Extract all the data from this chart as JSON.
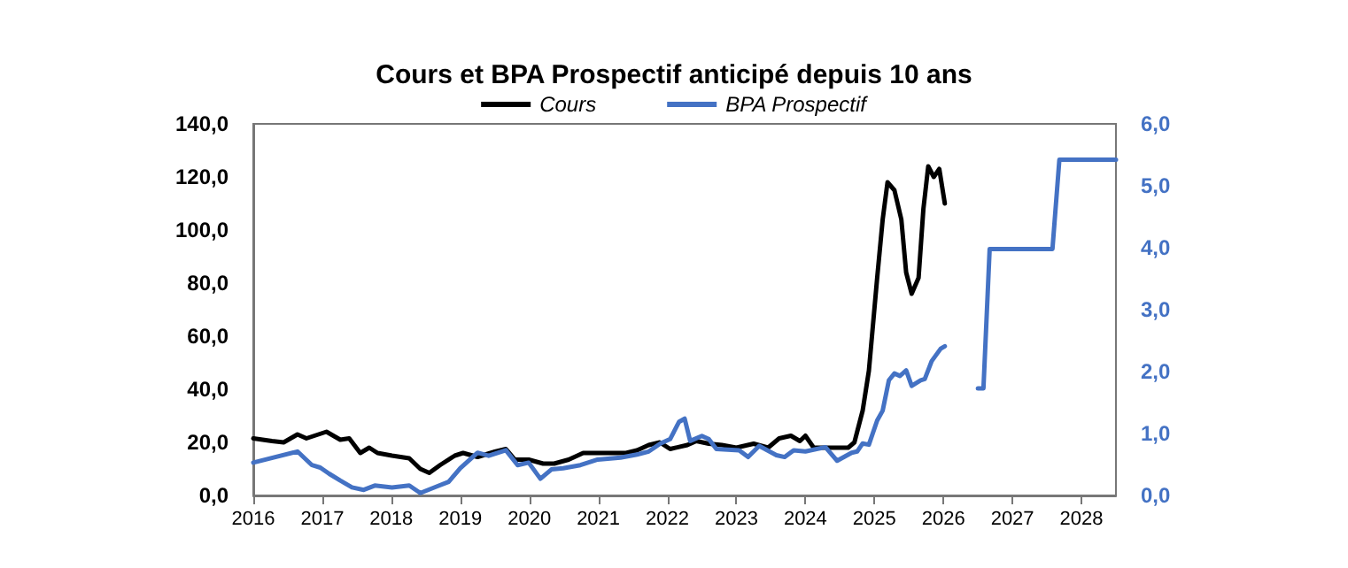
{
  "chart_data": {
    "type": "line",
    "title": "Cours et BPA Prospectif anticipé depuis 10 ans",
    "xlim": [
      2016,
      2028.5
    ],
    "xticks": [
      2016,
      2017,
      2018,
      2019,
      2020,
      2021,
      2022,
      2023,
      2024,
      2025,
      2026,
      2027,
      2028
    ],
    "ylim": [
      0,
      140
    ],
    "yticks": [
      {
        "value": 0,
        "label": "0,0"
      },
      {
        "value": 20,
        "label": "20,0"
      },
      {
        "value": 40,
        "label": "40,0"
      },
      {
        "value": 60,
        "label": "60,0"
      },
      {
        "value": 80,
        "label": "80,0"
      },
      {
        "value": 100,
        "label": "100,0"
      },
      {
        "value": 120,
        "label": "120,0"
      },
      {
        "value": 140,
        "label": "140,0"
      }
    ],
    "y2lim": [
      0,
      6
    ],
    "y2ticks": [
      {
        "value": 0,
        "label": "0,0"
      },
      {
        "value": 1,
        "label": "1,0"
      },
      {
        "value": 2,
        "label": "2,0"
      },
      {
        "value": 3,
        "label": "3,0"
      },
      {
        "value": 4,
        "label": "4,0"
      },
      {
        "value": 5,
        "label": "5,0"
      },
      {
        "value": 6,
        "label": "6,0"
      }
    ],
    "grid": false,
    "legend": "top",
    "marker": "none",
    "line_style": "solid",
    "series": [
      {
        "name": "Cours",
        "color": "#000000",
        "x": [
          2016.0,
          2016.27,
          2016.44,
          2016.64,
          2016.77,
          2017.06,
          2017.26,
          2017.39,
          2017.55,
          2017.68,
          2017.8,
          2018.01,
          2018.26,
          2018.42,
          2018.55,
          2018.71,
          2018.92,
          2019.04,
          2019.25,
          2019.5,
          2019.66,
          2019.79,
          2019.99,
          2020.2,
          2020.36,
          2020.57,
          2020.78,
          2021.07,
          2021.4,
          2021.56,
          2021.73,
          2021.89,
          2022.04,
          2022.29,
          2022.42,
          2022.6,
          2022.79,
          2023.0,
          2023.25,
          2023.46,
          2023.62,
          2023.79,
          2023.92,
          2024.0,
          2024.12,
          2024.29,
          2024.62,
          2024.71,
          2024.83,
          2024.92,
          2025.04,
          2025.12,
          2025.19,
          2025.29,
          2025.39,
          2025.46,
          2025.54,
          2025.64,
          2025.71,
          2025.78,
          2025.86,
          2025.94,
          2026.02
        ],
        "values": [
          21.5,
          20.5,
          20,
          23,
          21.5,
          24,
          21,
          21.5,
          16,
          18,
          16,
          15,
          14,
          10,
          8.5,
          11.5,
          15,
          16,
          14.5,
          16.5,
          17.5,
          13.5,
          13.5,
          12,
          12,
          13.5,
          16,
          16,
          16,
          17,
          19,
          20,
          17.5,
          19,
          20.5,
          19.5,
          19,
          18,
          19.5,
          18,
          21.5,
          22.5,
          20.5,
          22.5,
          18,
          18,
          18,
          20,
          32,
          47,
          82,
          104,
          118,
          115,
          104,
          84,
          76,
          82,
          108,
          124,
          120,
          123,
          110
        ]
      },
      {
        "name": "BPA Prospectif",
        "color": "#4472c4",
        "axis": "y2",
        "x": [
          2016.0,
          2016.64,
          2016.85,
          2016.97,
          2017.1,
          2017.26,
          2017.43,
          2017.6,
          2017.76,
          2018.01,
          2018.26,
          2018.42,
          2018.67,
          2018.83,
          2019.0,
          2019.25,
          2019.41,
          2019.66,
          2019.83,
          2019.99,
          2020.16,
          2020.32,
          2020.49,
          2020.74,
          2020.99,
          2021.32,
          2021.56,
          2021.73,
          2021.9,
          2022.04,
          2022.17,
          2022.25,
          2022.33,
          2022.5,
          2022.6,
          2022.71,
          2023.04,
          2023.17,
          2023.33,
          2023.58,
          2023.7,
          2023.83,
          2024.0,
          2024.29,
          2024.46,
          2024.67,
          2024.75,
          2024.83,
          2024.92,
          2025.04,
          2025.12,
          2025.21,
          2025.29,
          2025.37,
          2025.46,
          2025.54,
          2025.67,
          2025.73,
          2025.83,
          2025.96,
          2026.02,
          2026.25,
          2026.5,
          2026.58,
          2026.67,
          2027.58,
          2027.68,
          2028.5
        ],
        "values": [
          0.53,
          0.71,
          0.49,
          0.45,
          0.35,
          0.24,
          0.13,
          0.09,
          0.16,
          0.13,
          0.16,
          0.04,
          0.15,
          0.22,
          0.44,
          0.69,
          0.64,
          0.73,
          0.49,
          0.53,
          0.27,
          0.42,
          0.44,
          0.49,
          0.58,
          0.61,
          0.66,
          0.71,
          0.84,
          0.91,
          1.19,
          1.24,
          0.88,
          0.96,
          0.91,
          0.75,
          0.73,
          0.62,
          0.8,
          0.65,
          0.62,
          0.73,
          0.71,
          0.78,
          0.56,
          0.69,
          0.71,
          0.84,
          0.82,
          1.21,
          1.37,
          1.86,
          1.97,
          1.93,
          2.02,
          1.77,
          1.86,
          1.88,
          2.17,
          2.37,
          2.41,
          null,
          1.73,
          1.73,
          3.98,
          3.98,
          5.42,
          5.42
        ]
      }
    ]
  }
}
